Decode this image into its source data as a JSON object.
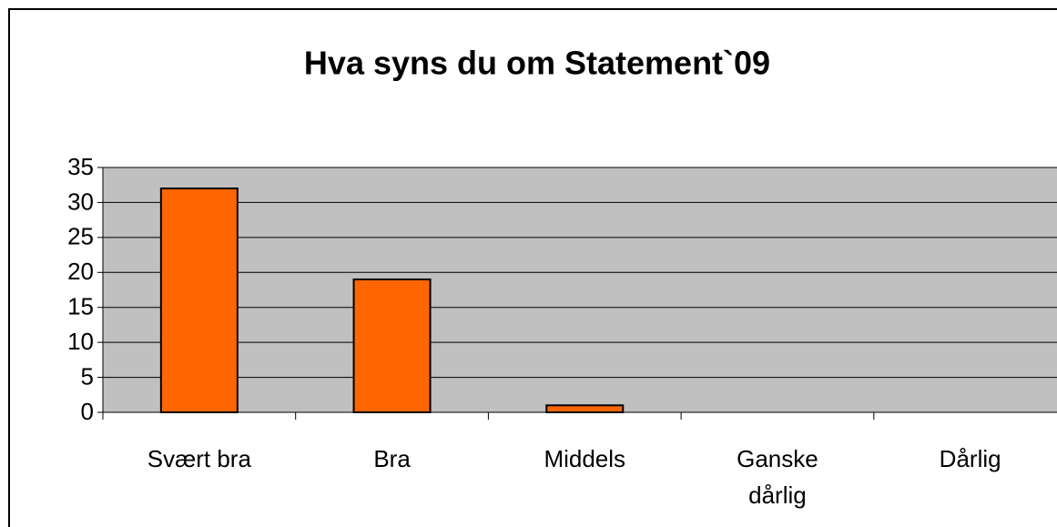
{
  "chart_data": {
    "type": "bar",
    "title": "Hva syns du om Statement`09",
    "categories": [
      "Svært bra",
      "Bra",
      "Middels",
      "Ganske dårlig",
      "Dårlig"
    ],
    "values": [
      32,
      19,
      1,
      0,
      0
    ],
    "color": "#ff6600",
    "ylim": [
      0,
      35
    ],
    "yticks": [
      0,
      5,
      10,
      15,
      20,
      25,
      30,
      35
    ],
    "grid": true
  }
}
